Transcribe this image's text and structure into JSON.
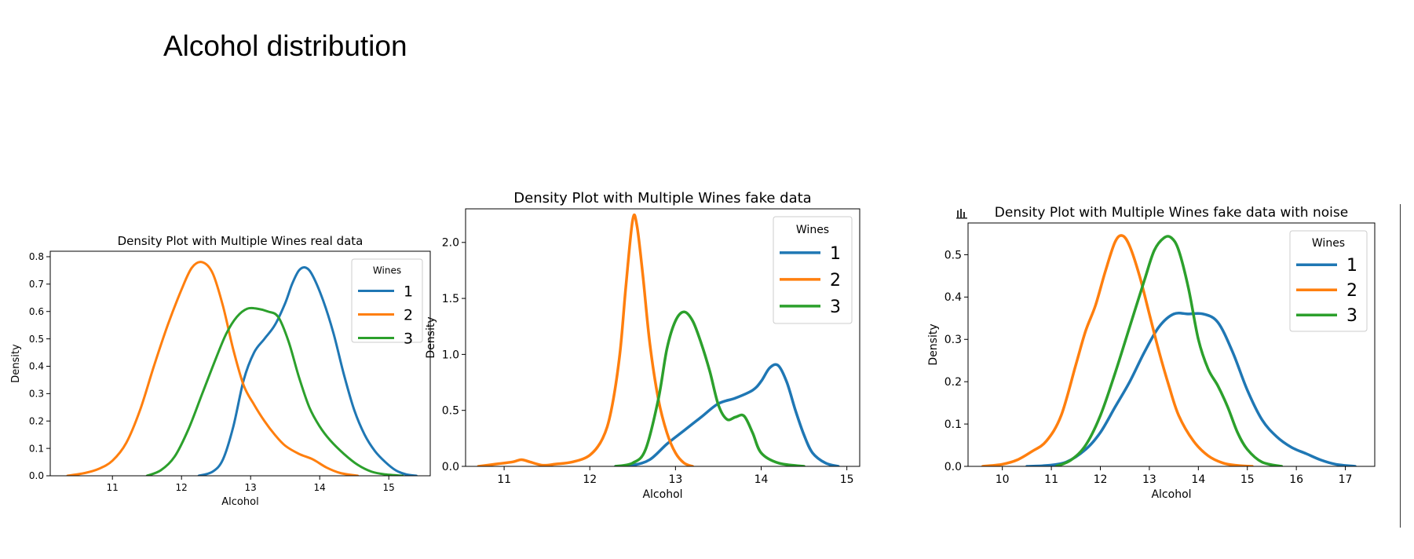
{
  "page": {
    "title": "Alcohol distribution"
  },
  "colors": {
    "1": "#1f77b4",
    "2": "#ff7f0e",
    "3": "#2ca02c"
  },
  "chart_data": [
    {
      "type": "line",
      "title": "Density Plot with Multiple Wines real data",
      "xlabel": "Alcohol",
      "ylabel": "Density",
      "xlim": [
        10.1,
        15.6
      ],
      "ylim": [
        0,
        0.82
      ],
      "xticks": [
        11,
        12,
        13,
        14,
        15
      ],
      "yticks": [
        0.0,
        0.1,
        0.2,
        0.3,
        0.4,
        0.5,
        0.6,
        0.7,
        0.8
      ],
      "ytick_decimals": 1,
      "grid": false,
      "legend": {
        "title": "Wines",
        "placement": "top-right"
      },
      "series": [
        {
          "name": "1",
          "color": "#1f77b4",
          "x": [
            12.25,
            12.45,
            12.6,
            12.75,
            12.9,
            13.05,
            13.2,
            13.35,
            13.5,
            13.6,
            13.7,
            13.8,
            13.9,
            14.05,
            14.2,
            14.35,
            14.5,
            14.65,
            14.8,
            14.95,
            15.1,
            15.25,
            15.4
          ],
          "y": [
            0.0,
            0.015,
            0.06,
            0.18,
            0.35,
            0.45,
            0.5,
            0.55,
            0.63,
            0.7,
            0.75,
            0.76,
            0.73,
            0.64,
            0.52,
            0.37,
            0.24,
            0.15,
            0.09,
            0.05,
            0.02,
            0.005,
            0.0
          ]
        },
        {
          "name": "2",
          "color": "#ff7f0e",
          "x": [
            10.35,
            10.6,
            10.8,
            11.0,
            11.2,
            11.4,
            11.6,
            11.8,
            12.0,
            12.15,
            12.3,
            12.45,
            12.6,
            12.75,
            12.9,
            13.05,
            13.2,
            13.35,
            13.5,
            13.7,
            13.9,
            14.1,
            14.3,
            14.55
          ],
          "y": [
            0.0,
            0.01,
            0.025,
            0.055,
            0.12,
            0.24,
            0.4,
            0.55,
            0.68,
            0.76,
            0.78,
            0.74,
            0.62,
            0.46,
            0.33,
            0.26,
            0.2,
            0.15,
            0.11,
            0.08,
            0.06,
            0.03,
            0.01,
            0.0
          ]
        },
        {
          "name": "3",
          "color": "#2ca02c",
          "x": [
            11.5,
            11.7,
            11.9,
            12.1,
            12.3,
            12.5,
            12.65,
            12.8,
            12.95,
            13.1,
            13.25,
            13.4,
            13.55,
            13.7,
            13.85,
            14.0,
            14.15,
            14.35,
            14.55,
            14.75,
            14.95,
            15.2
          ],
          "y": [
            0.0,
            0.02,
            0.07,
            0.17,
            0.3,
            0.43,
            0.52,
            0.58,
            0.61,
            0.61,
            0.6,
            0.58,
            0.49,
            0.36,
            0.25,
            0.18,
            0.13,
            0.08,
            0.04,
            0.015,
            0.005,
            0.0
          ]
        }
      ]
    },
    {
      "type": "line",
      "title": "Density Plot with Multiple Wines fake data",
      "xlabel": "Alcohol",
      "ylabel": "Density",
      "xlim": [
        10.55,
        15.15
      ],
      "ylim": [
        0,
        2.3
      ],
      "xticks": [
        11,
        12,
        13,
        14,
        15
      ],
      "yticks": [
        0.0,
        0.5,
        1.0,
        1.5,
        2.0
      ],
      "ytick_decimals": 1,
      "grid": false,
      "legend": {
        "title": "Wines",
        "placement": "top-right"
      },
      "series": [
        {
          "name": "1",
          "color": "#1f77b4",
          "x": [
            12.3,
            12.5,
            12.7,
            12.9,
            13.1,
            13.3,
            13.5,
            13.7,
            13.9,
            14.0,
            14.1,
            14.2,
            14.3,
            14.4,
            14.5,
            14.6,
            14.75,
            14.9
          ],
          "y": [
            0.0,
            0.01,
            0.06,
            0.2,
            0.32,
            0.44,
            0.56,
            0.61,
            0.68,
            0.76,
            0.88,
            0.9,
            0.75,
            0.5,
            0.28,
            0.12,
            0.03,
            0.0
          ]
        },
        {
          "name": "2",
          "color": "#ff7f0e",
          "x": [
            10.7,
            10.9,
            11.1,
            11.2,
            11.3,
            11.45,
            11.6,
            11.8,
            12.0,
            12.15,
            12.25,
            12.35,
            12.42,
            12.5,
            12.55,
            12.62,
            12.7,
            12.8,
            12.9,
            13.0,
            13.1,
            13.2
          ],
          "y": [
            0.0,
            0.02,
            0.04,
            0.06,
            0.04,
            0.01,
            0.02,
            0.04,
            0.1,
            0.25,
            0.5,
            1.0,
            1.6,
            2.2,
            2.15,
            1.7,
            1.1,
            0.6,
            0.3,
            0.12,
            0.03,
            0.0
          ]
        },
        {
          "name": "3",
          "color": "#2ca02c",
          "x": [
            12.3,
            12.5,
            12.65,
            12.8,
            12.9,
            13.0,
            13.1,
            13.2,
            13.3,
            13.4,
            13.5,
            13.6,
            13.7,
            13.8,
            13.9,
            14.0,
            14.2,
            14.5
          ],
          "y": [
            0.0,
            0.03,
            0.15,
            0.6,
            1.05,
            1.3,
            1.38,
            1.3,
            1.1,
            0.85,
            0.55,
            0.42,
            0.44,
            0.45,
            0.3,
            0.12,
            0.03,
            0.0
          ]
        }
      ]
    },
    {
      "type": "line",
      "title": "Density Plot with Multiple Wines fake data with noise",
      "xlabel": "Alcohol",
      "ylabel": "Density",
      "xlim": [
        9.3,
        17.6
      ],
      "ylim": [
        0,
        0.575
      ],
      "xticks": [
        10,
        11,
        12,
        13,
        14,
        15,
        16,
        17
      ],
      "yticks": [
        0.0,
        0.1,
        0.2,
        0.3,
        0.4,
        0.5
      ],
      "ytick_decimals": 1,
      "grid": false,
      "legend": {
        "title": "Wines",
        "placement": "top-right"
      },
      "series": [
        {
          "name": "1",
          "color": "#1f77b4",
          "x": [
            10.5,
            10.9,
            11.3,
            11.7,
            12.0,
            12.3,
            12.6,
            12.9,
            13.2,
            13.5,
            13.8,
            14.1,
            14.4,
            14.7,
            15.0,
            15.3,
            15.6,
            15.9,
            16.2,
            16.5,
            16.8,
            17.2
          ],
          "y": [
            0.0,
            0.002,
            0.01,
            0.04,
            0.08,
            0.14,
            0.2,
            0.27,
            0.33,
            0.36,
            0.36,
            0.36,
            0.34,
            0.27,
            0.18,
            0.11,
            0.07,
            0.045,
            0.03,
            0.015,
            0.005,
            0.0
          ]
        },
        {
          "name": "2",
          "color": "#ff7f0e",
          "x": [
            9.6,
            10.0,
            10.3,
            10.6,
            10.9,
            11.2,
            11.5,
            11.7,
            11.9,
            12.1,
            12.3,
            12.45,
            12.6,
            12.8,
            13.0,
            13.2,
            13.4,
            13.6,
            13.9,
            14.2,
            14.5,
            14.8,
            15.1
          ],
          "y": [
            0.0,
            0.005,
            0.015,
            0.035,
            0.06,
            0.12,
            0.24,
            0.32,
            0.38,
            0.46,
            0.53,
            0.545,
            0.52,
            0.45,
            0.36,
            0.27,
            0.19,
            0.12,
            0.06,
            0.025,
            0.008,
            0.002,
            0.0
          ]
        },
        {
          "name": "3",
          "color": "#2ca02c",
          "x": [
            11.1,
            11.4,
            11.7,
            12.0,
            12.3,
            12.6,
            12.9,
            13.1,
            13.3,
            13.45,
            13.6,
            13.8,
            14.0,
            14.2,
            14.4,
            14.6,
            14.8,
            15.0,
            15.3,
            15.7
          ],
          "y": [
            0.0,
            0.015,
            0.05,
            0.12,
            0.22,
            0.33,
            0.44,
            0.51,
            0.54,
            0.54,
            0.51,
            0.42,
            0.3,
            0.23,
            0.19,
            0.14,
            0.08,
            0.04,
            0.01,
            0.0
          ]
        }
      ]
    }
  ]
}
